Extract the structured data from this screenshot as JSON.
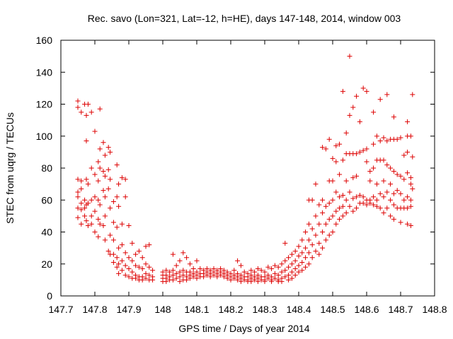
{
  "chart_data": {
    "type": "scatter",
    "title": "Rec. savo (Lon=321, Lat=-12, h=HE), days 147-148, 2014, window 003",
    "xlabel": "GPS time / Days of year 2014",
    "ylabel": "STEC from uqrg / TECUs",
    "xlim": [
      147.7,
      148.8
    ],
    "ylim": [
      0,
      160
    ],
    "xticks": [
      "147.7",
      "147.8",
      "147.9",
      "148",
      "148.1",
      "148.2",
      "148.3",
      "148.4",
      "148.5",
      "148.6",
      "148.7",
      "148.8"
    ],
    "yticks": [
      "0",
      "20",
      "40",
      "60",
      "80",
      "100",
      "120",
      "140",
      "160"
    ],
    "marker": "+",
    "color": "#dd0000",
    "points": [
      [
        147.75,
        122
      ],
      [
        147.75,
        118
      ],
      [
        147.75,
        73
      ],
      [
        147.75,
        65
      ],
      [
        147.75,
        62
      ],
      [
        147.75,
        55
      ],
      [
        147.75,
        49
      ],
      [
        147.76,
        115
      ],
      [
        147.76,
        72
      ],
      [
        147.76,
        67
      ],
      [
        147.76,
        58
      ],
      [
        147.76,
        54
      ],
      [
        147.76,
        45
      ],
      [
        147.77,
        120
      ],
      [
        147.77,
        60
      ],
      [
        147.77,
        55
      ],
      [
        147.77,
        50
      ],
      [
        147.775,
        113
      ],
      [
        147.775,
        97
      ],
      [
        147.775,
        73
      ],
      [
        147.775,
        57
      ],
      [
        147.775,
        47
      ],
      [
        147.78,
        120
      ],
      [
        147.78,
        70
      ],
      [
        147.78,
        58
      ],
      [
        147.78,
        44
      ],
      [
        147.79,
        115
      ],
      [
        147.79,
        80
      ],
      [
        147.79,
        60
      ],
      [
        147.79,
        50
      ],
      [
        147.79,
        45
      ],
      [
        147.8,
        103
      ],
      [
        147.8,
        76
      ],
      [
        147.8,
        62
      ],
      [
        147.8,
        53
      ],
      [
        147.8,
        40
      ],
      [
        147.81,
        84
      ],
      [
        147.81,
        72
      ],
      [
        147.81,
        60
      ],
      [
        147.81,
        48
      ],
      [
        147.81,
        37
      ],
      [
        147.815,
        117
      ],
      [
        147.815,
        92
      ],
      [
        147.815,
        80
      ],
      [
        147.815,
        57
      ],
      [
        147.815,
        45
      ],
      [
        147.825,
        96
      ],
      [
        147.825,
        78
      ],
      [
        147.825,
        66
      ],
      [
        147.825,
        44
      ],
      [
        147.83,
        88
      ],
      [
        147.83,
        75
      ],
      [
        147.83,
        62
      ],
      [
        147.83,
        50
      ],
      [
        147.83,
        35
      ],
      [
        147.84,
        93
      ],
      [
        147.84,
        79
      ],
      [
        147.84,
        67
      ],
      [
        147.84,
        28
      ],
      [
        147.845,
        90
      ],
      [
        147.845,
        73
      ],
      [
        147.845,
        55
      ],
      [
        147.845,
        38
      ],
      [
        147.845,
        26
      ],
      [
        147.855,
        59
      ],
      [
        147.855,
        46
      ],
      [
        147.855,
        35
      ],
      [
        147.855,
        26
      ],
      [
        147.855,
        21
      ],
      [
        147.865,
        82
      ],
      [
        147.865,
        62
      ],
      [
        147.865,
        43
      ],
      [
        147.865,
        24
      ],
      [
        147.865,
        18
      ],
      [
        147.87,
        70
      ],
      [
        147.87,
        56
      ],
      [
        147.87,
        30
      ],
      [
        147.87,
        20
      ],
      [
        147.87,
        14
      ],
      [
        147.88,
        74
      ],
      [
        147.88,
        45
      ],
      [
        147.88,
        32
      ],
      [
        147.88,
        22
      ],
      [
        147.88,
        16
      ],
      [
        147.89,
        73
      ],
      [
        147.89,
        62
      ],
      [
        147.89,
        27
      ],
      [
        147.89,
        19
      ],
      [
        147.89,
        13
      ],
      [
        147.9,
        44
      ],
      [
        147.9,
        24
      ],
      [
        147.9,
        17
      ],
      [
        147.9,
        12
      ],
      [
        147.91,
        33
      ],
      [
        147.91,
        22
      ],
      [
        147.91,
        15
      ],
      [
        147.91,
        11
      ],
      [
        147.92,
        26
      ],
      [
        147.92,
        19
      ],
      [
        147.92,
        13
      ],
      [
        147.92,
        11
      ],
      [
        147.93,
        28
      ],
      [
        147.93,
        18
      ],
      [
        147.93,
        12
      ],
      [
        147.93,
        10
      ],
      [
        147.94,
        24
      ],
      [
        147.94,
        17
      ],
      [
        147.94,
        12
      ],
      [
        147.94,
        10
      ],
      [
        147.95,
        31
      ],
      [
        147.95,
        20
      ],
      [
        147.95,
        14
      ],
      [
        147.95,
        11
      ],
      [
        147.96,
        32
      ],
      [
        147.96,
        18
      ],
      [
        147.96,
        13
      ],
      [
        147.96,
        10
      ],
      [
        147.97,
        16
      ],
      [
        147.97,
        12
      ],
      [
        147.97,
        10
      ],
      [
        148.0,
        15
      ],
      [
        148.0,
        13
      ],
      [
        148.0,
        11
      ],
      [
        148.0,
        9
      ],
      [
        148.01,
        16
      ],
      [
        148.01,
        13
      ],
      [
        148.01,
        11
      ],
      [
        148.01,
        9
      ],
      [
        148.02,
        15
      ],
      [
        148.02,
        12
      ],
      [
        148.02,
        10
      ],
      [
        148.03,
        26
      ],
      [
        148.03,
        16
      ],
      [
        148.03,
        13
      ],
      [
        148.03,
        10
      ],
      [
        148.04,
        19
      ],
      [
        148.04,
        14
      ],
      [
        148.04,
        11
      ],
      [
        148.05,
        22
      ],
      [
        148.05,
        15
      ],
      [
        148.05,
        12
      ],
      [
        148.05,
        9
      ],
      [
        148.06,
        27
      ],
      [
        148.06,
        16
      ],
      [
        148.06,
        13
      ],
      [
        148.06,
        10
      ],
      [
        148.07,
        24
      ],
      [
        148.07,
        15
      ],
      [
        148.07,
        12
      ],
      [
        148.07,
        10
      ],
      [
        148.08,
        20
      ],
      [
        148.08,
        15
      ],
      [
        148.08,
        13
      ],
      [
        148.08,
        11
      ],
      [
        148.09,
        17
      ],
      [
        148.09,
        14
      ],
      [
        148.09,
        12
      ],
      [
        148.1,
        22
      ],
      [
        148.1,
        15
      ],
      [
        148.1,
        13
      ],
      [
        148.1,
        11
      ],
      [
        148.11,
        17
      ],
      [
        148.11,
        14
      ],
      [
        148.11,
        12
      ],
      [
        148.12,
        16
      ],
      [
        148.12,
        14
      ],
      [
        148.12,
        12
      ],
      [
        148.13,
        17
      ],
      [
        148.13,
        15
      ],
      [
        148.13,
        13
      ],
      [
        148.14,
        16
      ],
      [
        148.14,
        14
      ],
      [
        148.14,
        12
      ],
      [
        148.15,
        17
      ],
      [
        148.15,
        15
      ],
      [
        148.15,
        13
      ],
      [
        148.16,
        16
      ],
      [
        148.16,
        14
      ],
      [
        148.16,
        12
      ],
      [
        148.17,
        17
      ],
      [
        148.17,
        15
      ],
      [
        148.17,
        13
      ],
      [
        148.18,
        16
      ],
      [
        148.18,
        14
      ],
      [
        148.18,
        12
      ],
      [
        148.19,
        15
      ],
      [
        148.19,
        13
      ],
      [
        148.19,
        11
      ],
      [
        148.2,
        14
      ],
      [
        148.2,
        12
      ],
      [
        148.2,
        10
      ],
      [
        148.21,
        16
      ],
      [
        148.21,
        13
      ],
      [
        148.21,
        11
      ],
      [
        148.22,
        22
      ],
      [
        148.22,
        14
      ],
      [
        148.22,
        12
      ],
      [
        148.22,
        10
      ],
      [
        148.23,
        19
      ],
      [
        148.23,
        13
      ],
      [
        148.23,
        11
      ],
      [
        148.23,
        9
      ],
      [
        148.24,
        15
      ],
      [
        148.24,
        12
      ],
      [
        148.24,
        10
      ],
      [
        148.25,
        14
      ],
      [
        148.25,
        12
      ],
      [
        148.25,
        10
      ],
      [
        148.25,
        9
      ],
      [
        148.26,
        16
      ],
      [
        148.26,
        13
      ],
      [
        148.26,
        11
      ],
      [
        148.26,
        9
      ],
      [
        148.27,
        15
      ],
      [
        148.27,
        12
      ],
      [
        148.27,
        10
      ],
      [
        148.28,
        17
      ],
      [
        148.28,
        13
      ],
      [
        148.28,
        11
      ],
      [
        148.28,
        9
      ],
      [
        148.29,
        16
      ],
      [
        148.29,
        12
      ],
      [
        148.29,
        10
      ],
      [
        148.3,
        15
      ],
      [
        148.3,
        12
      ],
      [
        148.3,
        10
      ],
      [
        148.3,
        9
      ],
      [
        148.31,
        18
      ],
      [
        148.31,
        13
      ],
      [
        148.31,
        11
      ],
      [
        148.32,
        17
      ],
      [
        148.32,
        12
      ],
      [
        148.32,
        10
      ],
      [
        148.32,
        9
      ],
      [
        148.33,
        19
      ],
      [
        148.33,
        14
      ],
      [
        148.33,
        11
      ],
      [
        148.34,
        18
      ],
      [
        148.34,
        13
      ],
      [
        148.34,
        10
      ],
      [
        148.34,
        9
      ],
      [
        148.35,
        20
      ],
      [
        148.35,
        15
      ],
      [
        148.35,
        11
      ],
      [
        148.35,
        9
      ],
      [
        148.36,
        33
      ],
      [
        148.36,
        22
      ],
      [
        148.36,
        16
      ],
      [
        148.36,
        12
      ],
      [
        148.37,
        24
      ],
      [
        148.37,
        18
      ],
      [
        148.37,
        13
      ],
      [
        148.37,
        10
      ],
      [
        148.38,
        26
      ],
      [
        148.38,
        20
      ],
      [
        148.38,
        15
      ],
      [
        148.38,
        11
      ],
      [
        148.39,
        28
      ],
      [
        148.39,
        22
      ],
      [
        148.39,
        17
      ],
      [
        148.39,
        13
      ],
      [
        148.4,
        31
      ],
      [
        148.4,
        25
      ],
      [
        148.4,
        19
      ],
      [
        148.4,
        15
      ],
      [
        148.41,
        35
      ],
      [
        148.41,
        27
      ],
      [
        148.41,
        21
      ],
      [
        148.41,
        16
      ],
      [
        148.42,
        40
      ],
      [
        148.42,
        30
      ],
      [
        148.42,
        24
      ],
      [
        148.42,
        18
      ],
      [
        148.43,
        60
      ],
      [
        148.43,
        45
      ],
      [
        148.43,
        35
      ],
      [
        148.43,
        27
      ],
      [
        148.43,
        20
      ],
      [
        148.44,
        60
      ],
      [
        148.44,
        42
      ],
      [
        148.44,
        32
      ],
      [
        148.44,
        24
      ],
      [
        148.45,
        70
      ],
      [
        148.45,
        50
      ],
      [
        148.45,
        38
      ],
      [
        148.45,
        28
      ],
      [
        148.46,
        57
      ],
      [
        148.46,
        45
      ],
      [
        148.46,
        33
      ],
      [
        148.46,
        26
      ],
      [
        148.47,
        93
      ],
      [
        148.47,
        60
      ],
      [
        148.47,
        52
      ],
      [
        148.47,
        40
      ],
      [
        148.47,
        30
      ],
      [
        148.48,
        92
      ],
      [
        148.48,
        56
      ],
      [
        148.48,
        45
      ],
      [
        148.48,
        35
      ],
      [
        148.49,
        98
      ],
      [
        148.49,
        72
      ],
      [
        148.49,
        58
      ],
      [
        148.49,
        48
      ],
      [
        148.49,
        38
      ],
      [
        148.5,
        86
      ],
      [
        148.5,
        72
      ],
      [
        148.5,
        60
      ],
      [
        148.5,
        50
      ],
      [
        148.5,
        40
      ],
      [
        148.51,
        94
      ],
      [
        148.51,
        84
      ],
      [
        148.51,
        65
      ],
      [
        148.51,
        53
      ],
      [
        148.51,
        45
      ],
      [
        148.52,
        95
      ],
      [
        148.52,
        76
      ],
      [
        148.52,
        62
      ],
      [
        148.52,
        55
      ],
      [
        148.52,
        48
      ],
      [
        148.53,
        128
      ],
      [
        148.53,
        85
      ],
      [
        148.53,
        63
      ],
      [
        148.53,
        56
      ],
      [
        148.53,
        50
      ],
      [
        148.54,
        102
      ],
      [
        148.54,
        89
      ],
      [
        148.54,
        72
      ],
      [
        148.54,
        60
      ],
      [
        148.54,
        52
      ],
      [
        148.55,
        150
      ],
      [
        148.55,
        113
      ],
      [
        148.55,
        89
      ],
      [
        148.55,
        65
      ],
      [
        148.55,
        56
      ],
      [
        148.56,
        118
      ],
      [
        148.56,
        89
      ],
      [
        148.56,
        74
      ],
      [
        148.56,
        61
      ],
      [
        148.56,
        53
      ],
      [
        148.57,
        125
      ],
      [
        148.57,
        89
      ],
      [
        148.57,
        75
      ],
      [
        148.57,
        62
      ],
      [
        148.57,
        55
      ],
      [
        148.58,
        109
      ],
      [
        148.58,
        90
      ],
      [
        148.58,
        63
      ],
      [
        148.58,
        58
      ],
      [
        148.59,
        130
      ],
      [
        148.59,
        91
      ],
      [
        148.59,
        62
      ],
      [
        148.59,
        58
      ],
      [
        148.6,
        128
      ],
      [
        148.6,
        92
      ],
      [
        148.6,
        84
      ],
      [
        148.6,
        60
      ],
      [
        148.6,
        57
      ],
      [
        148.61,
        78
      ],
      [
        148.61,
        72
      ],
      [
        148.61,
        60
      ],
      [
        148.61,
        58
      ],
      [
        148.62,
        115
      ],
      [
        148.62,
        95
      ],
      [
        148.62,
        80
      ],
      [
        148.62,
        62
      ],
      [
        148.62,
        57
      ],
      [
        148.63,
        100
      ],
      [
        148.63,
        85
      ],
      [
        148.63,
        70
      ],
      [
        148.63,
        60
      ],
      [
        148.63,
        56
      ],
      [
        148.64,
        123
      ],
      [
        148.64,
        97
      ],
      [
        148.64,
        85
      ],
      [
        148.64,
        64
      ],
      [
        148.64,
        55
      ],
      [
        148.65,
        99
      ],
      [
        148.65,
        85
      ],
      [
        148.65,
        72
      ],
      [
        148.65,
        62
      ],
      [
        148.65,
        52
      ],
      [
        148.66,
        126
      ],
      [
        148.66,
        97
      ],
      [
        148.66,
        82
      ],
      [
        148.66,
        65
      ],
      [
        148.66,
        55
      ],
      [
        148.67,
        98
      ],
      [
        148.67,
        80
      ],
      [
        148.67,
        70
      ],
      [
        148.67,
        60
      ],
      [
        148.67,
        50
      ],
      [
        148.68,
        112
      ],
      [
        148.68,
        98
      ],
      [
        148.68,
        78
      ],
      [
        148.68,
        64
      ],
      [
        148.68,
        57
      ],
      [
        148.68,
        48
      ],
      [
        148.69,
        98
      ],
      [
        148.69,
        76
      ],
      [
        148.69,
        66
      ],
      [
        148.69,
        55
      ],
      [
        148.7,
        99
      ],
      [
        148.7,
        75
      ],
      [
        148.7,
        64
      ],
      [
        148.7,
        55
      ],
      [
        148.7,
        46
      ],
      [
        148.71,
        88
      ],
      [
        148.71,
        73
      ],
      [
        148.71,
        60
      ],
      [
        148.71,
        55
      ],
      [
        148.72,
        109
      ],
      [
        148.72,
        100
      ],
      [
        148.72,
        90
      ],
      [
        148.72,
        77
      ],
      [
        148.72,
        62
      ],
      [
        148.72,
        55
      ],
      [
        148.72,
        45
      ],
      [
        148.73,
        100
      ],
      [
        148.73,
        74
      ],
      [
        148.73,
        70
      ],
      [
        148.73,
        60
      ],
      [
        148.73,
        56
      ],
      [
        148.73,
        44
      ],
      [
        148.735,
        126
      ],
      [
        148.735,
        87
      ],
      [
        148.735,
        67
      ]
    ]
  }
}
